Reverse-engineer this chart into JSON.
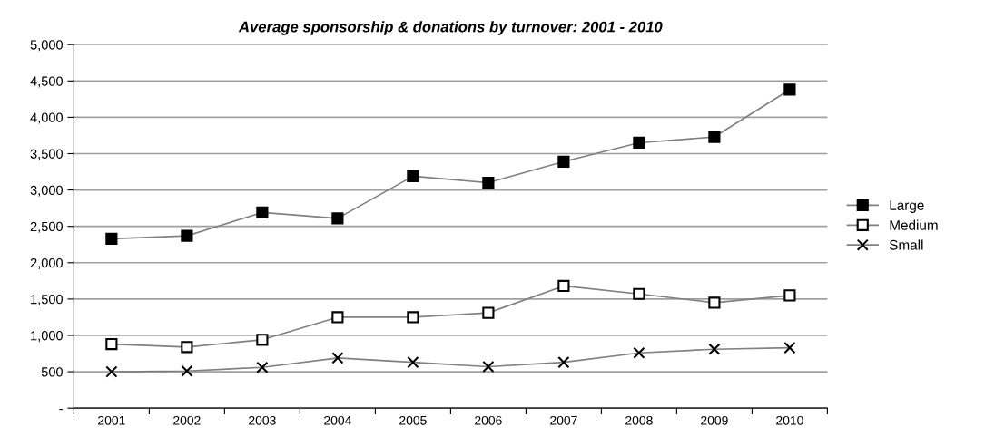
{
  "chart_data": {
    "type": "line",
    "title": "Average sponsorship & donations by turnover: 2001 - 2010",
    "categories": [
      "2001",
      "2002",
      "2003",
      "2004",
      "2005",
      "2006",
      "2007",
      "2008",
      "2009",
      "2010"
    ],
    "series": [
      {
        "name": "Large",
        "color": "#000000",
        "marker": "square",
        "values": [
          2330,
          2370,
          2690,
          2610,
          3190,
          3100,
          3390,
          3650,
          3730,
          4380
        ]
      },
      {
        "name": "Medium",
        "color": "#ffffff",
        "marker": "square",
        "values": [
          880,
          840,
          940,
          1250,
          1250,
          1310,
          1680,
          1570,
          1450,
          1550
        ]
      },
      {
        "name": "Small",
        "color": "#000000",
        "marker": "cross",
        "values": [
          500,
          510,
          560,
          690,
          630,
          570,
          630,
          760,
          810,
          830
        ]
      }
    ],
    "ylim": [
      0,
      5000
    ],
    "yticks": [
      {
        "value": 0,
        "label": "-"
      },
      {
        "value": 500,
        "label": "500"
      },
      {
        "value": 1000,
        "label": "1,000"
      },
      {
        "value": 1500,
        "label": "1,500"
      },
      {
        "value": 2000,
        "label": "2,000"
      },
      {
        "value": 2500,
        "label": "2,500"
      },
      {
        "value": 3000,
        "label": "3,000"
      },
      {
        "value": 3500,
        "label": "3,500"
      },
      {
        "value": 4000,
        "label": "4,000"
      },
      {
        "value": 4500,
        "label": "4,500"
      },
      {
        "value": 5000,
        "label": "5,000"
      }
    ],
    "grid": "y",
    "legend": "right",
    "line_style": "solid"
  }
}
